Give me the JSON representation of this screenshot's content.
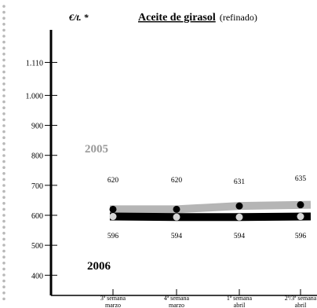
{
  "header": {
    "unit": "€/t. *",
    "title": "Aceite de girasol",
    "subtitle": "(refinado)"
  },
  "chart_data": {
    "type": "line",
    "title": "Aceite de girasol",
    "subtitle": "(refinado)",
    "ylabel": "€/t. *",
    "xlabel": "",
    "ylim": [
      350,
      1180
    ],
    "yticks": [
      400,
      500,
      600,
      700,
      800,
      900,
      1000,
      1110
    ],
    "ytick_labels": [
      "400",
      "500",
      "600",
      "700",
      "800",
      "900",
      "1.000",
      "1.110"
    ],
    "categories": [
      {
        "line1": "3ª semana",
        "line2": "marzo"
      },
      {
        "line1": "4ª semana",
        "line2": "marzo"
      },
      {
        "line1": "1ª semana",
        "line2": "abril"
      },
      {
        "line1": "2ª/3ª semana",
        "line2": "abril"
      }
    ],
    "series": [
      {
        "name": "2005",
        "values": [
          620,
          620,
          631,
          635
        ],
        "band_color": "#b5b5b5",
        "marker_color": "#000000",
        "label_color": "#9a9a9a"
      },
      {
        "name": "2006",
        "values": [
          596,
          594,
          594,
          596
        ],
        "band_color": "#000000",
        "marker_color": "#d6d6d6",
        "label_color": "#000000"
      }
    ],
    "data_labels_above": [
      "620",
      "620",
      "631",
      "635"
    ],
    "data_labels_below": [
      "596",
      "594",
      "594",
      "596"
    ],
    "grid": false,
    "legend": "inline"
  },
  "colors": {
    "axis": "#000000",
    "dots": "#b8b8b8",
    "series_2005_label": "#9a9a9a",
    "series_2006_label": "#000000"
  }
}
